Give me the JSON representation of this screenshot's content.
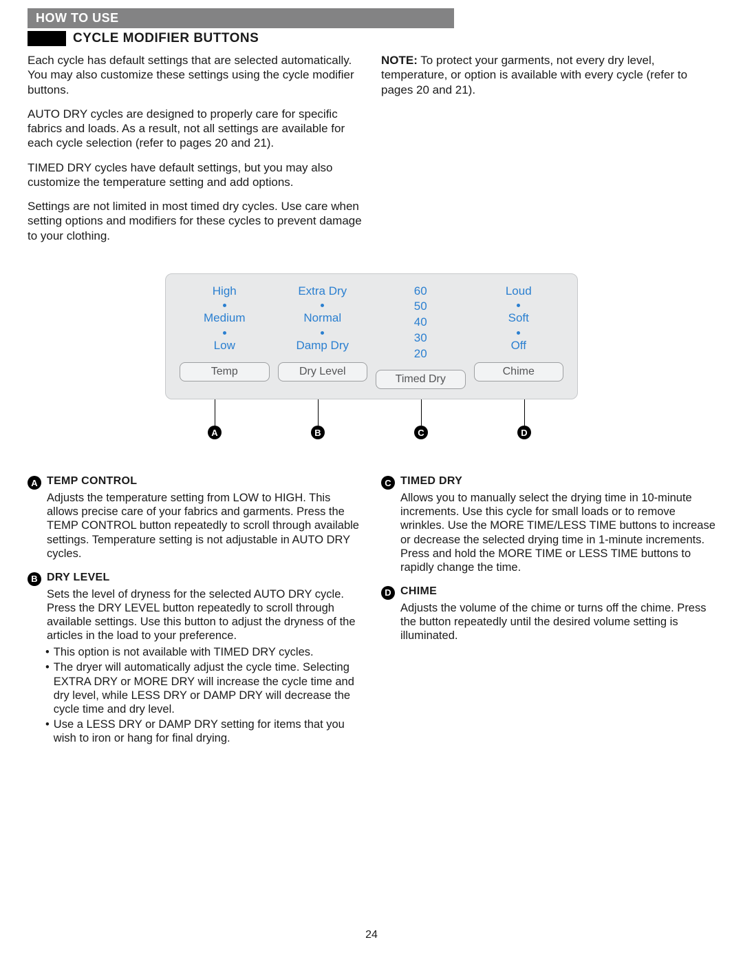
{
  "header": "HOW TO USE",
  "section_title": "CYCLE MODIFIER BUTTONS",
  "intro": {
    "p1": "Each cycle has default settings that are selected automatically. You may also customize these settings using the cycle modifier buttons.",
    "p2": "AUTO DRY cycles are designed to properly care for specific fabrics and loads. As a result, not all settings are available for each cycle selection (refer to pages 20 and 21).",
    "p3": "TIMED DRY cycles have default settings, but you may also customize the temperature setting and add options.",
    "p4": "Settings are not limited in most timed dry cycles. Use care when setting options and modifiers for these cycles to prevent damage to your clothing.",
    "note_label": "NOTE:",
    "note_text": " To protect your garments, not every dry level, temperature, or option is available with every cycle (refer to pages 20 and 21)."
  },
  "panel": {
    "colors": {
      "option_text": "#2a7fd0",
      "panel_bg": "#e8e9ea",
      "panel_border": "#c6c8ca",
      "button_border": "#9d9fa1",
      "button_bg": "#f2f3f4",
      "button_text": "#545557"
    },
    "columns": [
      {
        "rows": [
          "High",
          "•",
          "Medium",
          "•",
          "Low"
        ],
        "button": "Temp",
        "letter": "A",
        "line_left_pct": 12
      },
      {
        "rows": [
          "Extra Dry",
          "•",
          "Normal",
          "•",
          "Damp Dry"
        ],
        "button": "Dry Level",
        "letter": "B",
        "line_left_pct": 37
      },
      {
        "rows": [
          "60",
          "50",
          "40",
          "30",
          "20"
        ],
        "button": "Timed Dry",
        "letter": "C",
        "line_left_pct": 62
      },
      {
        "rows": [
          "Loud",
          "•",
          "Soft",
          "•",
          "Off"
        ],
        "button": "Chime",
        "letter": "D",
        "line_left_pct": 87
      }
    ]
  },
  "descriptions": {
    "left": [
      {
        "letter": "A",
        "title": "TEMP CONTROL",
        "body": "Adjusts the temperature setting from LOW to HIGH. This allows precise care of your fabrics and garments. Press the TEMP CONTROL button repeatedly to scroll through available settings. Temperature setting is not adjustable in AUTO DRY cycles.",
        "bullets": []
      },
      {
        "letter": "B",
        "title": "DRY LEVEL",
        "body": "Sets the level of dryness for the selected AUTO DRY cycle. Press the DRY LEVEL button repeatedly to scroll through available settings. Use this button to adjust the dryness of the articles in the load to your preference.",
        "bullets": [
          "This option is not available with TIMED DRY cycles.",
          "The dryer will automatically adjust the cycle time. Selecting EXTRA DRY or MORE DRY will increase the cycle time and dry level, while LESS DRY or DAMP DRY will decrease the cycle time and dry level.",
          "Use a LESS DRY or DAMP DRY setting for items that you wish to iron or hang for final drying."
        ]
      }
    ],
    "right": [
      {
        "letter": "C",
        "title": "TIMED DRY",
        "body": "Allows you to manually select the drying time in 10-minute increments. Use this cycle for small loads or to remove wrinkles. Use the MORE TIME/LESS TIME buttons to increase or decrease the selected drying time in 1-minute increments. Press and hold the MORE TIME or LESS TIME buttons to rapidly change the time.",
        "bullets": []
      },
      {
        "letter": "D",
        "title": "CHIME",
        "body": "Adjusts the volume of the chime or turns off the chime. Press the button repeatedly until the desired volume setting is illuminated.",
        "bullets": []
      }
    ]
  },
  "page_number": "24"
}
